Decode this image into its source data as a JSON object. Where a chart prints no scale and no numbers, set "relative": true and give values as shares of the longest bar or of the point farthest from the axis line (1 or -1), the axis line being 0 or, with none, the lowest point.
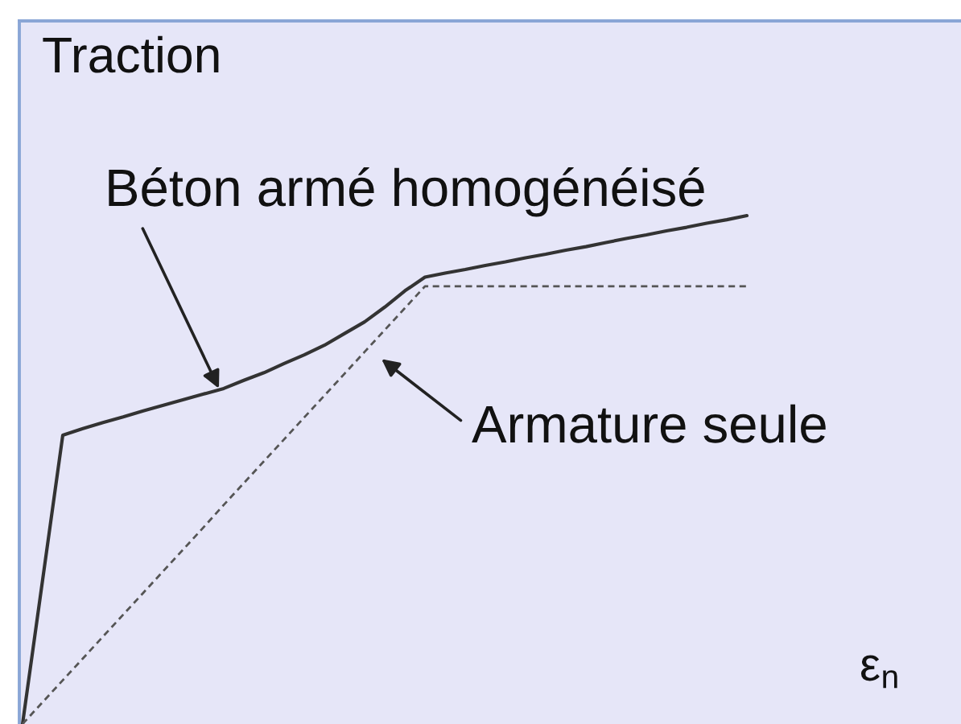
{
  "chart_data": {
    "type": "line",
    "relative": true,
    "ylabel": "Traction",
    "xlabel": "ε$_{n}$",
    "categories": [
      null,
      null,
      null,
      null,
      null,
      null,
      null,
      null,
      null,
      null,
      null,
      null,
      null,
      null,
      null,
      null,
      null,
      null,
      null,
      null,
      null,
      null,
      null,
      null,
      null,
      null,
      null,
      null,
      null,
      null,
      null,
      null,
      null,
      null,
      null,
      null,
      null
    ],
    "series": [
      {
        "name": "Béton armé homogénéisé",
        "color": "#333333",
        "line_style": "solid",
        "values": [
          0,
          0.284,
          0.568,
          0.581,
          0.593,
          0.604,
          0.616,
          0.627,
          0.638,
          0.649,
          0.66,
          0.676,
          0.691,
          0.709,
          0.726,
          0.745,
          0.768,
          0.791,
          0.82,
          0.852,
          0.879,
          0.887,
          0.894,
          0.902,
          0.909,
          0.917,
          0.924,
          0.932,
          0.939,
          0.947,
          0.955,
          0.962,
          0.97,
          0.977,
          0.985,
          0.992,
          1.0
        ]
      },
      {
        "name": "Armature seule",
        "color": "#555555",
        "line_style": "dashed",
        "values": [
          0,
          0.043,
          0.086,
          0.129,
          0.172,
          0.215,
          0.258,
          0.301,
          0.344,
          0.387,
          0.431,
          0.474,
          0.517,
          0.56,
          0.603,
          0.646,
          0.689,
          0.732,
          0.775,
          0.818,
          0.861,
          0.861,
          0.861,
          0.861,
          0.861,
          0.861,
          0.861,
          0.861,
          0.861,
          0.861,
          0.861,
          0.861,
          0.861,
          0.861,
          0.861,
          0.861,
          0.861
        ]
      }
    ]
  }
}
